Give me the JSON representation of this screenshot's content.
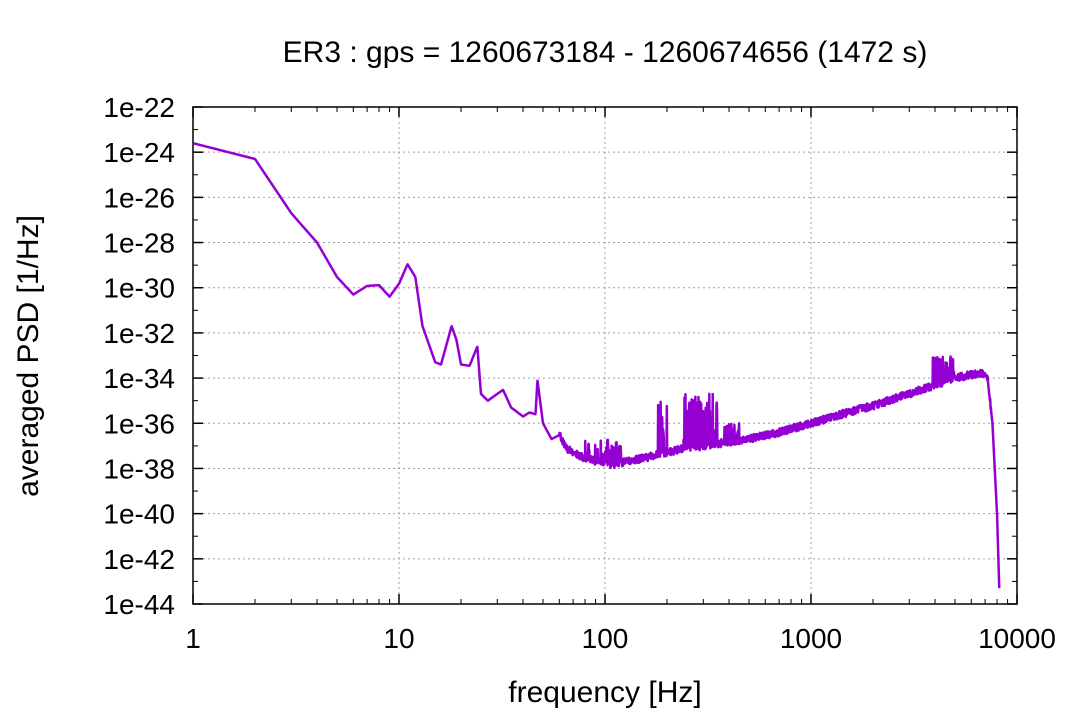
{
  "chart_data": {
    "type": "line",
    "title": "ER3 : gps = 1260673184 - 1260674656 (1472 s)",
    "xlabel": "frequency [Hz]",
    "ylabel": "averaged PSD [1/Hz]",
    "x_scale": "log",
    "y_scale": "log",
    "xlim": [
      1,
      10000
    ],
    "ylim": [
      1e-44,
      1e-22
    ],
    "x_ticks": [
      1,
      10,
      100,
      1000,
      10000
    ],
    "x_tick_labels": [
      "1",
      "10",
      "100",
      "1000",
      "10000"
    ],
    "y_ticks": [
      1e-22,
      1e-24,
      1e-26,
      1e-28,
      1e-30,
      1e-32,
      1e-34,
      1e-36,
      1e-38,
      1e-40,
      1e-42,
      1e-44
    ],
    "y_tick_labels": [
      "1e-22",
      "1e-24",
      "1e-26",
      "1e-28",
      "1e-30",
      "1e-32",
      "1e-34",
      "1e-36",
      "1e-38",
      "1e-40",
      "1e-42",
      "1e-44"
    ],
    "grid": true,
    "color": "#9400d3",
    "series": [
      {
        "x": [
          1,
          2,
          3,
          4,
          5,
          6,
          7,
          8,
          9,
          10,
          11,
          12,
          13,
          15,
          16,
          18,
          19,
          20,
          22,
          24,
          25,
          27,
          30,
          32,
          35,
          40,
          43,
          46,
          47,
          50,
          55,
          60,
          65,
          70,
          80,
          90,
          100,
          110,
          120,
          140,
          160,
          180,
          200,
          250,
          300,
          400,
          500,
          700,
          1000,
          1500,
          2000,
          3000,
          4000,
          5000,
          6000,
          6800,
          7200,
          7600,
          8000,
          8200
        ],
        "y": [
          2.5e-24,
          5e-25,
          2e-27,
          1e-28,
          3e-30,
          5e-31,
          1.2e-30,
          1.3e-30,
          4e-31,
          1.5e-30,
          1.1e-29,
          3e-30,
          2e-32,
          5e-34,
          4e-34,
          2e-32,
          5e-33,
          4e-34,
          3.5e-34,
          2.5e-33,
          2e-35,
          1e-35,
          2e-35,
          3e-35,
          5e-36,
          2e-36,
          3e-36,
          2.5e-36,
          8e-35,
          1e-36,
          2e-37,
          3e-37,
          8e-38,
          5e-38,
          3e-38,
          2e-38,
          1.6e-38,
          1.5e-38,
          1.8e-38,
          2.5e-38,
          3e-38,
          4e-38,
          5e-38,
          8e-38,
          1e-37,
          1.5e-37,
          2e-37,
          4e-37,
          1e-36,
          3e-36,
          6e-36,
          2e-35,
          5e-35,
          1e-34,
          1.4e-34,
          1.6e-34,
          1e-34,
          1e-36,
          1e-40,
          5e-44
        ]
      }
    ],
    "spike_bands": [
      {
        "x": [
          45,
          49
        ],
        "peak": 1e-34
      },
      {
        "x": [
          80,
          120
        ],
        "peak": 2e-37
      },
      {
        "x": [
          180,
          200
        ],
        "peak": 1e-35
      },
      {
        "x": [
          240,
          350
        ],
        "peak": 2e-35
      },
      {
        "x": [
          380,
          450
        ],
        "peak": 1e-36
      },
      {
        "x": [
          3900,
          5000
        ],
        "peak": 1e-33
      }
    ]
  }
}
